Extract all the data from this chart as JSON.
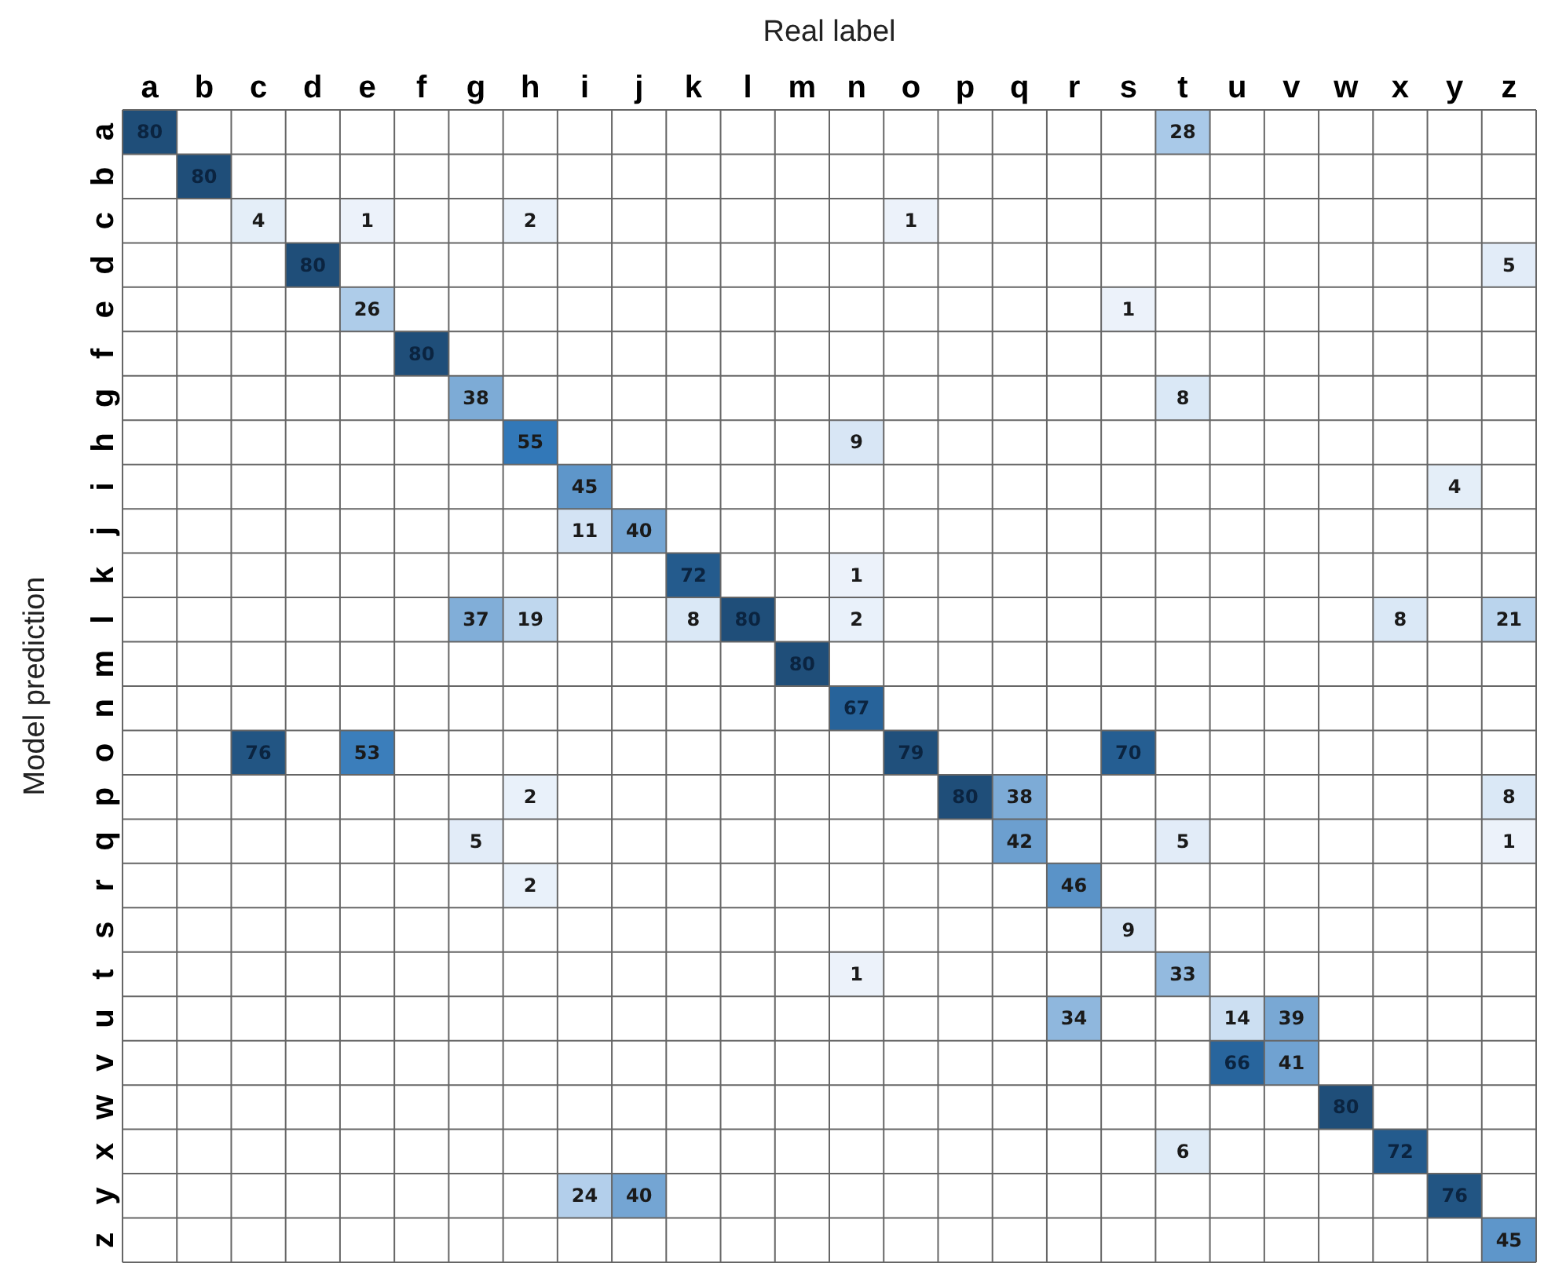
{
  "chart_data": {
    "type": "heatmap",
    "xlabel": "Real label",
    "ylabel": "Model prediction",
    "data_labels": true,
    "grid": true,
    "categories": [
      "a",
      "b",
      "c",
      "d",
      "e",
      "f",
      "g",
      "h",
      "i",
      "j",
      "k",
      "l",
      "m",
      "n",
      "o",
      "p",
      "q",
      "r",
      "s",
      "t",
      "u",
      "v",
      "w",
      "x",
      "y",
      "z"
    ],
    "y_categories": [
      "a",
      "b",
      "c",
      "d",
      "e",
      "f",
      "g",
      "h",
      "i",
      "j",
      "k",
      "l",
      "m",
      "n",
      "o",
      "p",
      "q",
      "r",
      "s",
      "t",
      "u",
      "v",
      "w",
      "x",
      "y",
      "z"
    ],
    "cells": [
      [
        80,
        null,
        null,
        null,
        null,
        null,
        null,
        null,
        null,
        null,
        null,
        null,
        null,
        null,
        null,
        null,
        null,
        null,
        null,
        28,
        null,
        null,
        null,
        null,
        null,
        null
      ],
      [
        null,
        80,
        null,
        null,
        null,
        null,
        null,
        null,
        null,
        null,
        null,
        null,
        null,
        null,
        null,
        null,
        null,
        null,
        null,
        null,
        null,
        null,
        null,
        null,
        null,
        null
      ],
      [
        null,
        null,
        4,
        null,
        1,
        null,
        null,
        2,
        null,
        null,
        null,
        null,
        null,
        null,
        1,
        null,
        null,
        null,
        null,
        null,
        null,
        null,
        null,
        null,
        null,
        null
      ],
      [
        null,
        null,
        null,
        80,
        null,
        null,
        null,
        null,
        null,
        null,
        null,
        null,
        null,
        null,
        null,
        null,
        null,
        null,
        null,
        null,
        null,
        null,
        null,
        null,
        null,
        5
      ],
      [
        null,
        null,
        null,
        null,
        26,
        null,
        null,
        null,
        null,
        null,
        null,
        null,
        null,
        null,
        null,
        null,
        null,
        null,
        1,
        null,
        null,
        null,
        null,
        null,
        null,
        null
      ],
      [
        null,
        null,
        null,
        null,
        null,
        80,
        null,
        null,
        null,
        null,
        null,
        null,
        null,
        null,
        null,
        null,
        null,
        null,
        null,
        null,
        null,
        null,
        null,
        null,
        null,
        null
      ],
      [
        null,
        null,
        null,
        null,
        null,
        null,
        38,
        null,
        null,
        null,
        null,
        null,
        null,
        null,
        null,
        null,
        null,
        null,
        null,
        8,
        null,
        null,
        null,
        null,
        null,
        null
      ],
      [
        null,
        null,
        null,
        null,
        null,
        null,
        null,
        55,
        null,
        null,
        null,
        null,
        null,
        9,
        null,
        null,
        null,
        null,
        null,
        null,
        null,
        null,
        null,
        null,
        null,
        null
      ],
      [
        null,
        null,
        null,
        null,
        null,
        null,
        null,
        null,
        45,
        null,
        null,
        null,
        null,
        null,
        null,
        null,
        null,
        null,
        null,
        null,
        null,
        null,
        null,
        null,
        4,
        null
      ],
      [
        null,
        null,
        null,
        null,
        null,
        null,
        null,
        null,
        11,
        40,
        null,
        null,
        null,
        null,
        null,
        null,
        null,
        null,
        null,
        null,
        null,
        null,
        null,
        null,
        null,
        null
      ],
      [
        null,
        null,
        null,
        null,
        null,
        null,
        null,
        null,
        null,
        null,
        72,
        null,
        null,
        1,
        null,
        null,
        null,
        null,
        null,
        null,
        null,
        null,
        null,
        null,
        null,
        null
      ],
      [
        null,
        null,
        null,
        null,
        null,
        null,
        37,
        19,
        null,
        null,
        8,
        80,
        null,
        2,
        null,
        null,
        null,
        null,
        null,
        null,
        null,
        null,
        null,
        8,
        null,
        21
      ],
      [
        null,
        null,
        null,
        null,
        null,
        null,
        null,
        null,
        null,
        null,
        null,
        null,
        80,
        null,
        null,
        null,
        null,
        null,
        null,
        null,
        null,
        null,
        null,
        null,
        null,
        null
      ],
      [
        null,
        null,
        null,
        null,
        null,
        null,
        null,
        null,
        null,
        null,
        null,
        null,
        null,
        67,
        null,
        null,
        null,
        null,
        null,
        null,
        null,
        null,
        null,
        null,
        null,
        null
      ],
      [
        null,
        null,
        76,
        null,
        53,
        null,
        null,
        null,
        null,
        null,
        null,
        null,
        null,
        null,
        79,
        null,
        null,
        null,
        70,
        null,
        null,
        null,
        null,
        null,
        null,
        null
      ],
      [
        null,
        null,
        null,
        null,
        null,
        null,
        null,
        2,
        null,
        null,
        null,
        null,
        null,
        null,
        null,
        80,
        38,
        null,
        null,
        null,
        null,
        null,
        null,
        null,
        null,
        8
      ],
      [
        null,
        null,
        null,
        null,
        null,
        null,
        5,
        null,
        null,
        null,
        null,
        null,
        null,
        null,
        null,
        null,
        42,
        null,
        null,
        5,
        null,
        null,
        null,
        null,
        null,
        1
      ],
      [
        null,
        null,
        null,
        null,
        null,
        null,
        null,
        2,
        null,
        null,
        null,
        null,
        null,
        null,
        null,
        null,
        null,
        46,
        null,
        null,
        null,
        null,
        null,
        null,
        null,
        null
      ],
      [
        null,
        null,
        null,
        null,
        null,
        null,
        null,
        null,
        null,
        null,
        null,
        null,
        null,
        null,
        null,
        null,
        null,
        null,
        9,
        null,
        null,
        null,
        null,
        null,
        null,
        null
      ],
      [
        null,
        null,
        null,
        null,
        null,
        null,
        null,
        null,
        null,
        null,
        null,
        null,
        null,
        1,
        null,
        null,
        null,
        null,
        null,
        33,
        null,
        null,
        null,
        null,
        null,
        null
      ],
      [
        null,
        null,
        null,
        null,
        null,
        null,
        null,
        null,
        null,
        null,
        null,
        null,
        null,
        null,
        null,
        null,
        null,
        34,
        null,
        null,
        14,
        39,
        null,
        null,
        null,
        null
      ],
      [
        null,
        null,
        null,
        null,
        null,
        null,
        null,
        null,
        null,
        null,
        null,
        null,
        null,
        null,
        null,
        null,
        null,
        null,
        null,
        null,
        66,
        41,
        null,
        null,
        null,
        null
      ],
      [
        null,
        null,
        null,
        null,
        null,
        null,
        null,
        null,
        null,
        null,
        null,
        null,
        null,
        null,
        null,
        null,
        null,
        null,
        null,
        null,
        null,
        null,
        80,
        null,
        null,
        null
      ],
      [
        null,
        null,
        null,
        null,
        null,
        null,
        null,
        null,
        null,
        null,
        null,
        null,
        null,
        null,
        null,
        null,
        null,
        null,
        null,
        6,
        null,
        null,
        null,
        72,
        null,
        null
      ],
      [
        null,
        null,
        null,
        null,
        null,
        null,
        null,
        null,
        24,
        40,
        null,
        null,
        null,
        null,
        null,
        null,
        null,
        null,
        null,
        null,
        null,
        null,
        null,
        null,
        76,
        null
      ],
      [
        null,
        null,
        null,
        null,
        null,
        null,
        null,
        null,
        null,
        null,
        null,
        null,
        null,
        null,
        null,
        null,
        null,
        null,
        null,
        null,
        null,
        null,
        null,
        null,
        null,
        45
      ]
    ]
  }
}
